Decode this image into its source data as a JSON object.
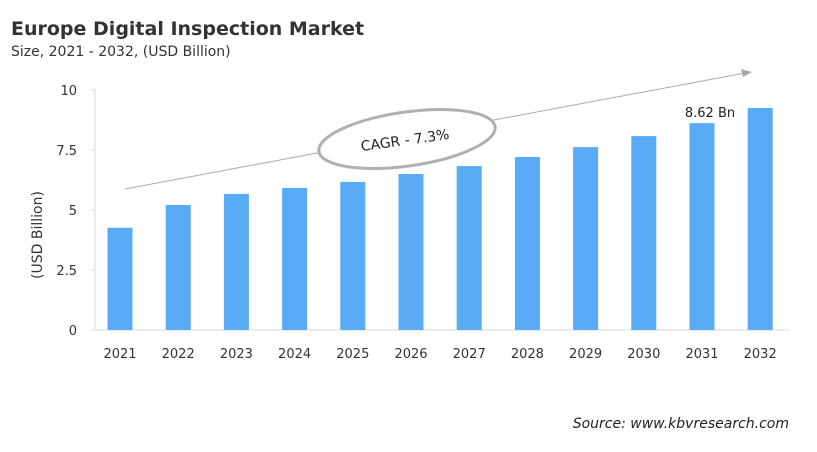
{
  "chart_data": {
    "type": "bar",
    "title": "Europe Digital Inspection Market",
    "subtitle": "Size, 2021 - 2032, (USD Billion)",
    "xlabel": "",
    "ylabel": "(USD Billion)",
    "categories": [
      "2021",
      "2022",
      "2023",
      "2024",
      "2025",
      "2026",
      "2027",
      "2028",
      "2029",
      "2030",
      "2031",
      "2032"
    ],
    "values": [
      4.26,
      5.21,
      5.67,
      5.92,
      6.17,
      6.5,
      6.83,
      7.21,
      7.62,
      8.08,
      8.62,
      9.25
    ],
    "ylim": [
      0,
      10
    ],
    "yticks": [
      0,
      2.5,
      5,
      7.5,
      10
    ],
    "ytick_labels": [
      "0",
      "2.5",
      "5",
      "7.5",
      "10"
    ],
    "grid": false,
    "bar_color": "#5aabf5",
    "data_label": {
      "category": "2031",
      "text": "8.62 Bn"
    },
    "annotation": "CAGR - 7.3%",
    "source": "Source: www.kbvresearch.com"
  }
}
